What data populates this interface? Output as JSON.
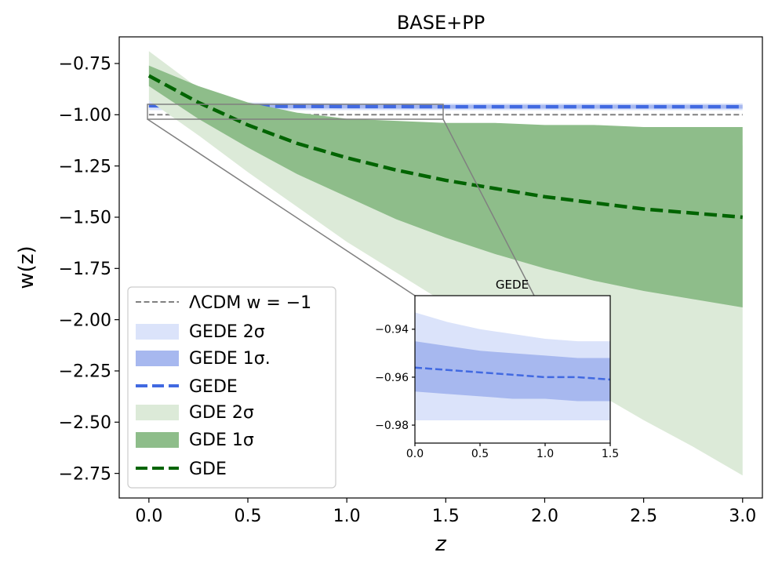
{
  "chart_data": [
    {
      "type": "line",
      "title": "BASE+PP",
      "xlabel": "z",
      "ylabel": "w(z)",
      "xlim": [
        -0.15,
        3.1
      ],
      "ylim": [
        -2.87,
        -0.62
      ],
      "xticks": [
        0.0,
        0.5,
        1.0,
        1.5,
        2.0,
        2.5,
        3.0
      ],
      "xtick_labels": [
        "0.0",
        "0.5",
        "1.0",
        "1.5",
        "2.0",
        "2.5",
        "3.0"
      ],
      "yticks": [
        -0.75,
        -1.0,
        -1.25,
        -1.5,
        -1.75,
        -2.0,
        -2.25,
        -2.5,
        -2.75
      ],
      "ytick_labels": [
        "−0.75",
        "−1.00",
        "−1.25",
        "−1.50",
        "−1.75",
        "−2.00",
        "−2.25",
        "−2.50",
        "−2.75"
      ],
      "grid": false,
      "legend_position": "lower-left",
      "x": [
        0.0,
        0.25,
        0.5,
        0.75,
        1.0,
        1.25,
        1.5,
        1.75,
        2.0,
        2.25,
        2.5,
        2.75,
        3.0
      ],
      "series": [
        {
          "name": "ΛCDM w = −1",
          "kind": "line",
          "style": "dashed",
          "color": "#808080",
          "values": [
            -1.0,
            -1.0,
            -1.0,
            -1.0,
            -1.0,
            -1.0,
            -1.0,
            -1.0,
            -1.0,
            -1.0,
            -1.0,
            -1.0,
            -1.0
          ]
        },
        {
          "name": "GEDE 2σ",
          "kind": "band",
          "color": "#dbe3fa",
          "lower": [
            -0.978,
            -0.978,
            -0.978,
            -0.978,
            -0.978,
            -0.978,
            -0.978,
            -0.978,
            -0.978,
            -0.978,
            -0.978,
            -0.978,
            -0.978
          ],
          "upper": [
            -0.933,
            -0.937,
            -0.94,
            -0.942,
            -0.944,
            -0.945,
            -0.945,
            -0.945,
            -0.945,
            -0.945,
            -0.945,
            -0.945,
            -0.945
          ]
        },
        {
          "name": "GEDE 1σ.",
          "kind": "band",
          "color": "#a7b8ef",
          "lower": [
            -0.966,
            -0.967,
            -0.968,
            -0.969,
            -0.969,
            -0.97,
            -0.97,
            -0.97,
            -0.97,
            -0.97,
            -0.97,
            -0.97,
            -0.97
          ],
          "upper": [
            -0.945,
            -0.947,
            -0.949,
            -0.95,
            -0.951,
            -0.952,
            -0.952,
            -0.952,
            -0.952,
            -0.952,
            -0.952,
            -0.952,
            -0.952
          ]
        },
        {
          "name": "GEDE",
          "kind": "line",
          "style": "dashed",
          "color": "#4169e1",
          "values": [
            -0.956,
            -0.957,
            -0.958,
            -0.959,
            -0.96,
            -0.96,
            -0.961,
            -0.961,
            -0.961,
            -0.961,
            -0.961,
            -0.961,
            -0.961
          ]
        },
        {
          "name": "GDE 2σ",
          "kind": "band",
          "color": "#dcead8",
          "lower": [
            -0.93,
            -1.1,
            -1.28,
            -1.45,
            -1.62,
            -1.77,
            -1.92,
            -2.07,
            -2.21,
            -2.35,
            -2.49,
            -2.62,
            -2.76
          ],
          "upper": [
            -0.69,
            -0.87,
            -0.98,
            -1.04,
            -1.08,
            -1.1,
            -1.12,
            -1.13,
            -1.14,
            -1.14,
            -1.15,
            -1.15,
            -1.15
          ]
        },
        {
          "name": "GDE 1σ",
          "kind": "band",
          "color": "#8ebd8a",
          "lower": [
            -0.86,
            -1.02,
            -1.16,
            -1.29,
            -1.4,
            -1.51,
            -1.6,
            -1.68,
            -1.75,
            -1.81,
            -1.86,
            -1.9,
            -1.94
          ]
        },
        {
          "name": "GDE",
          "kind": "line",
          "style": "dashed",
          "color": "#006400",
          "values": [
            -0.81,
            -0.94,
            -1.05,
            -1.14,
            -1.21,
            -1.27,
            -1.32,
            -1.36,
            -1.4,
            -1.43,
            -1.46,
            -1.48,
            -1.5
          ]
        }
      ]
    },
    {
      "type": "line",
      "title": "GEDE",
      "xlabel": "",
      "ylabel": "",
      "xlim": [
        0.0,
        1.5
      ],
      "ylim": [
        -0.9875,
        -0.926
      ],
      "xticks": [
        0.0,
        0.5,
        1.0,
        1.5
      ],
      "xtick_labels": [
        "0.0",
        "0.5",
        "1.0",
        "1.5"
      ],
      "yticks": [
        -0.94,
        -0.96,
        -0.98
      ],
      "ytick_labels": [
        "−0.94",
        "−0.96",
        "−0.98"
      ],
      "grid": false,
      "x": [
        0.0,
        0.25,
        0.5,
        0.75,
        1.0,
        1.25,
        1.5
      ],
      "series": [
        {
          "name": "GEDE 2σ",
          "kind": "band",
          "color": "#dbe3fa",
          "lower": [
            -0.978,
            -0.978,
            -0.978,
            -0.978,
            -0.978,
            -0.978,
            -0.978
          ],
          "upper": [
            -0.933,
            -0.937,
            -0.94,
            -0.942,
            -0.944,
            -0.945,
            -0.945
          ]
        },
        {
          "name": "GEDE 1σ.",
          "kind": "band",
          "color": "#a7b8ef",
          "lower": [
            -0.966,
            -0.967,
            -0.968,
            -0.969,
            -0.969,
            -0.97,
            -0.97
          ],
          "upper": [
            -0.945,
            -0.947,
            -0.949,
            -0.95,
            -0.951,
            -0.952,
            -0.952
          ]
        },
        {
          "name": "GEDE",
          "kind": "line",
          "style": "dashed",
          "color": "#4169e1",
          "values": [
            -0.956,
            -0.957,
            -0.958,
            -0.959,
            -0.96,
            -0.96,
            -0.961
          ]
        }
      ]
    }
  ]
}
